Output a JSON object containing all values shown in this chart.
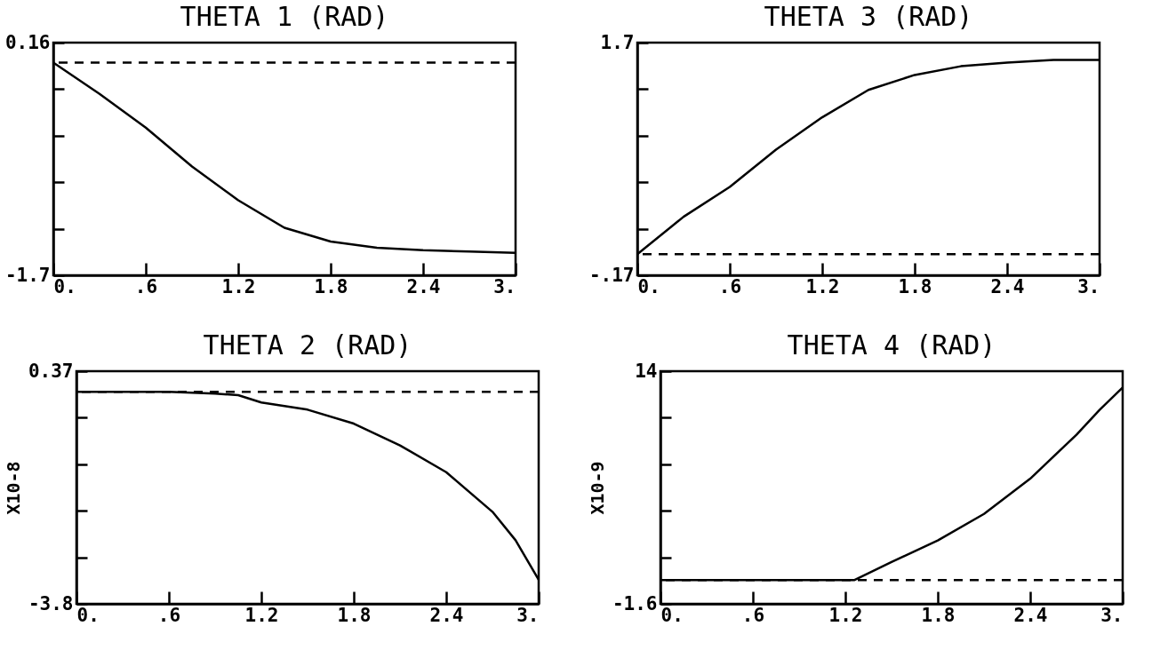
{
  "chart_data": [
    {
      "type": "line",
      "title": "THETA 1 (RAD)",
      "xlim": [
        0,
        3
      ],
      "xticks": [
        {
          "value": 0,
          "label": "0."
        },
        {
          "value": 0.6,
          "label": ".6"
        },
        1.2,
        1.8,
        2.4,
        {
          "value": 3,
          "label": "3."
        }
      ],
      "ylim": [
        -1.7,
        0.16
      ],
      "yticks": [
        -1.7,
        {
          "value": -1.328,
          "label": null
        },
        {
          "value": -0.956,
          "label": null
        },
        {
          "value": -0.584,
          "label": null
        },
        {
          "value": -0.212,
          "label": null
        },
        0.16
      ],
      "grid": false,
      "line_style": "solid",
      "series": [
        {
          "color": "#000000",
          "x": [
            0,
            0.3,
            0.6,
            0.9,
            1.2,
            1.5,
            1.8,
            2.1,
            2.4,
            2.7,
            3
          ],
          "values": [
            0,
            -0.25,
            -0.52,
            -0.83,
            -1.1,
            -1.32,
            -1.43,
            -1.48,
            -1.5,
            -1.51,
            -1.52
          ]
        }
      ],
      "ref_lines": [
        {
          "axis": "y",
          "value": 0,
          "line_style": "dashed"
        }
      ]
    },
    {
      "type": "line",
      "title": "THETA 3 (RAD)",
      "xlim": [
        0,
        3
      ],
      "xticks": [
        {
          "value": 0,
          "label": "0."
        },
        {
          "value": 0.6,
          "label": ".6"
        },
        1.2,
        1.8,
        2.4,
        {
          "value": 3,
          "label": "3."
        }
      ],
      "ylim": [
        -0.17,
        1.7
      ],
      "yticks": [
        {
          "value": -0.17,
          "label": "-.17"
        },
        {
          "value": 0.204,
          "label": null
        },
        {
          "value": 0.578,
          "label": null
        },
        {
          "value": 0.952,
          "label": null
        },
        {
          "value": 1.326,
          "label": null
        },
        1.7
      ],
      "grid": false,
      "line_style": "solid",
      "series": [
        {
          "color": "#000000",
          "x": [
            0,
            0.3,
            0.6,
            0.9,
            1.2,
            1.5,
            1.8,
            2.1,
            2.4,
            2.7,
            3
          ],
          "values": [
            0,
            0.3,
            0.54,
            0.84,
            1.1,
            1.32,
            1.44,
            1.51,
            1.54,
            1.56,
            1.56
          ]
        }
      ],
      "ref_lines": [
        {
          "axis": "y",
          "value": 0,
          "line_style": "dashed"
        }
      ]
    },
    {
      "type": "line",
      "title": "THETA 2 (RAD)",
      "ylabel": "X10-8",
      "xlim": [
        0,
        3
      ],
      "xticks": [
        {
          "value": 0,
          "label": "0."
        },
        {
          "value": 0.6,
          "label": ".6"
        },
        1.2,
        1.8,
        2.4,
        {
          "value": 3,
          "label": "3."
        }
      ],
      "ylim": [
        -3.8,
        0.37
      ],
      "yticks": [
        -3.8,
        {
          "value": -2.966,
          "label": null
        },
        {
          "value": -2.132,
          "label": null
        },
        {
          "value": -1.298,
          "label": null
        },
        {
          "value": -0.464,
          "label": null
        },
        0.37
      ],
      "grid": false,
      "line_style": "solid",
      "series": [
        {
          "color": "#000000",
          "x": [
            0,
            0.6,
            0.9,
            1.05,
            1.2,
            1.5,
            1.8,
            2.1,
            2.4,
            2.7,
            2.85,
            3
          ],
          "values": [
            0,
            0,
            -0.03,
            -0.06,
            -0.19,
            -0.32,
            -0.57,
            -0.96,
            -1.44,
            -2.15,
            -2.66,
            -3.37
          ]
        }
      ],
      "ref_lines": [
        {
          "axis": "y",
          "value": 0,
          "line_style": "dashed"
        }
      ]
    },
    {
      "type": "line",
      "title": "THETA 4 (RAD)",
      "ylabel": "X10-9",
      "xlim": [
        0,
        3
      ],
      "xticks": [
        {
          "value": 0,
          "label": "0."
        },
        {
          "value": 0.6,
          "label": ".6"
        },
        1.2,
        1.8,
        2.4,
        {
          "value": 3,
          "label": "3."
        }
      ],
      "ylim": [
        -1.6,
        14
      ],
      "yticks": [
        -1.6,
        {
          "value": 1.52,
          "label": null
        },
        {
          "value": 4.64,
          "label": null
        },
        {
          "value": 7.76,
          "label": null
        },
        {
          "value": 10.88,
          "label": null
        },
        14
      ],
      "grid": false,
      "line_style": "solid",
      "series": [
        {
          "color": "#000000",
          "x": [
            0,
            0.6,
            1.2,
            1.26,
            1.5,
            1.8,
            2.1,
            2.4,
            2.7,
            2.85,
            3
          ],
          "values": [
            0,
            0,
            0,
            0,
            1.2,
            2.65,
            4.43,
            6.79,
            9.74,
            11.4,
            12.9
          ]
        }
      ],
      "ref_lines": [
        {
          "axis": "y",
          "value": 0,
          "line_style": "dashed"
        }
      ]
    }
  ]
}
